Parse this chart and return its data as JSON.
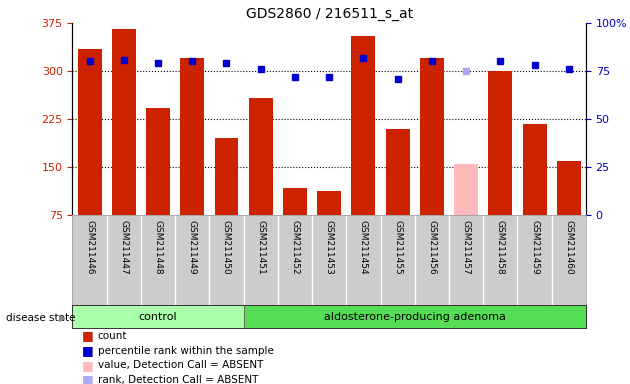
{
  "title": "GDS2860 / 216511_s_at",
  "samples": [
    "GSM211446",
    "GSM211447",
    "GSM211448",
    "GSM211449",
    "GSM211450",
    "GSM211451",
    "GSM211452",
    "GSM211453",
    "GSM211454",
    "GSM211455",
    "GSM211456",
    "GSM211457",
    "GSM211458",
    "GSM211459",
    "GSM211460"
  ],
  "counts": [
    335,
    365,
    242,
    320,
    195,
    258,
    118,
    113,
    355,
    210,
    320,
    155,
    300,
    218,
    160
  ],
  "percentiles": [
    80,
    81,
    79,
    80,
    79,
    76,
    72,
    72,
    82,
    71,
    80,
    75,
    80,
    78,
    76
  ],
  "absent_flags": [
    false,
    false,
    false,
    false,
    false,
    false,
    false,
    false,
    false,
    false,
    false,
    true,
    false,
    false,
    false
  ],
  "bar_color_normal": "#cc2200",
  "bar_color_absent": "#ffbbbb",
  "percentile_color_normal": "#0000cc",
  "percentile_color_absent": "#aaaaee",
  "control_count": 5,
  "ylim_left": [
    75,
    375
  ],
  "ylim_right": [
    0,
    100
  ],
  "yticks_left": [
    75,
    150,
    225,
    300,
    375
  ],
  "yticks_right": [
    0,
    25,
    50,
    75,
    100
  ],
  "ytick_labels_right": [
    "0",
    "25",
    "50",
    "75",
    "100%"
  ],
  "gridlines": [
    150,
    225,
    300
  ],
  "control_label": "control",
  "adenoma_label": "aldosterone-producing adenoma",
  "disease_state_label": "disease state",
  "legend_items": [
    {
      "label": "count",
      "color": "#cc2200"
    },
    {
      "label": "percentile rank within the sample",
      "color": "#0000cc"
    },
    {
      "label": "value, Detection Call = ABSENT",
      "color": "#ffbbbb"
    },
    {
      "label": "rank, Detection Call = ABSENT",
      "color": "#aaaaee"
    }
  ],
  "control_bg": "#aaffaa",
  "adenoma_bg": "#55dd55",
  "tick_area_color": "#cccccc",
  "disease_area_color": "#77ee77"
}
